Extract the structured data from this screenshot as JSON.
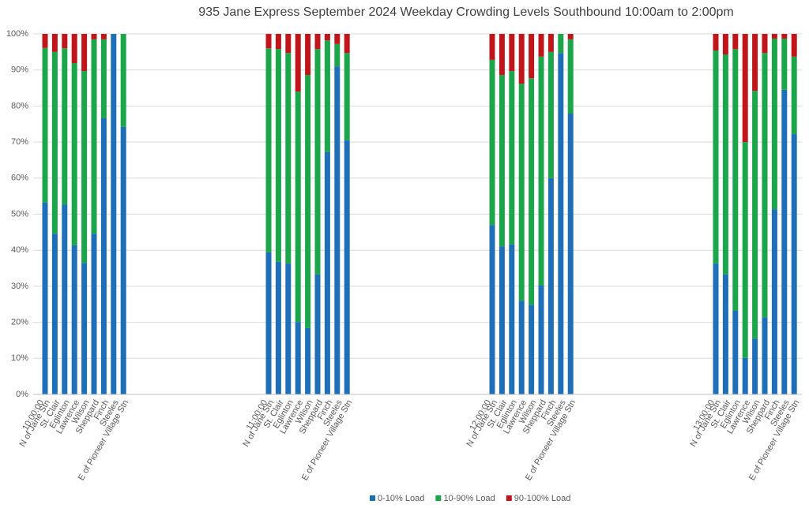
{
  "chart_data": {
    "type": "stacked_bar",
    "title": "935 Jane Express September 2024  Weekday Crowding Levels Southbound 10:00am to 2:00pm",
    "groups": [
      "10:00:00",
      "11:00:00",
      "12:00:00",
      "13:00:00"
    ],
    "categories": [
      "N of Jane Stn",
      "St. Clair",
      "Eglinton",
      "Lawrence",
      "Wilson",
      "Sheppard",
      "Finch",
      "Steeles",
      "E of Pioneer Village Stn"
    ],
    "series": [
      {
        "name": "0-10% Load",
        "color": "#1f6fb8",
        "values": [
          [
            53.2,
            44.6,
            52.7,
            41.4,
            36.5,
            44.6,
            76.6,
            100,
            74.2
          ],
          [
            39.4,
            36.8,
            36.3,
            20.1,
            18.4,
            33.3,
            67.2,
            91,
            70.5
          ],
          [
            47,
            41.1,
            41.6,
            26,
            24.9,
            30.2,
            60,
            94.7,
            77.9
          ],
          [
            36.3,
            33.3,
            23.2,
            10.1,
            15.5,
            21.4,
            51.4,
            84.5,
            72.2
          ]
        ]
      },
      {
        "name": "10-90% Load",
        "color": "#1ba64b",
        "values": [
          [
            42.9,
            50.4,
            43.3,
            50.5,
            53.2,
            53.9,
            21.9,
            0,
            25.8
          ],
          [
            56.6,
            59,
            58.4,
            63.9,
            70.2,
            62.5,
            31,
            6.2,
            24.2
          ],
          [
            45.8,
            47.5,
            48.1,
            60.2,
            62.8,
            63.5,
            35,
            5.3,
            20.6
          ],
          [
            59.1,
            61,
            72.6,
            59.9,
            68.7,
            73.3,
            47.3,
            14.2,
            21.5
          ]
        ]
      },
      {
        "name": "90-100% Load",
        "color": "#c0161b",
        "values": [
          [
            3.9,
            5,
            4,
            8.1,
            10.3,
            1.5,
            1.5,
            0,
            0
          ],
          [
            4,
            4.2,
            5.3,
            16,
            11.4,
            4.2,
            1.8,
            2.8,
            5.3
          ],
          [
            7.2,
            11.4,
            10.3,
            13.8,
            12.3,
            6.3,
            5,
            0,
            1.5
          ],
          [
            4.6,
            5.7,
            4.2,
            30,
            15.8,
            5.3,
            1.3,
            1.3,
            6.3
          ]
        ]
      }
    ],
    "ylim": [
      0,
      100
    ],
    "yticks": [
      {
        "value": 0,
        "label": "0%"
      },
      {
        "value": 10,
        "label": "10%"
      },
      {
        "value": 20,
        "label": "20%"
      },
      {
        "value": 30,
        "label": "30%"
      },
      {
        "value": 40,
        "label": "40%"
      },
      {
        "value": 50,
        "label": "50%"
      },
      {
        "value": 60,
        "label": "60%"
      },
      {
        "value": 70,
        "label": "70%"
      },
      {
        "value": 80,
        "label": "80%"
      },
      {
        "value": 90,
        "label": "90%"
      },
      {
        "value": 100,
        "label": "100%"
      }
    ],
    "grid": true,
    "legend": "bottom"
  }
}
